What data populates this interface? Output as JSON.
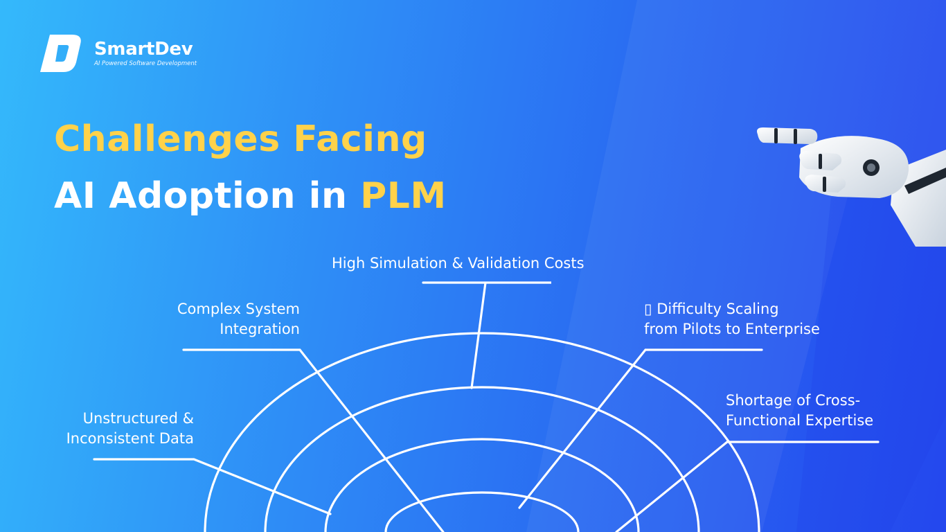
{
  "brand": {
    "name": "SmartDev",
    "tagline": "AI Powered Software Development",
    "logo_icon": "smartdev-logo-icon"
  },
  "title": {
    "line1": "Challenges Facing",
    "line2_prefix": "AI Adoption in ",
    "line2_highlight": "PLM"
  },
  "diagram": {
    "challenges": [
      {
        "lines": [
          "Unstructured &",
          "Inconsistent Data"
        ]
      },
      {
        "lines": [
          "Complex System",
          "Integration"
        ]
      },
      {
        "lines": [
          "High Simulation & Validation Costs"
        ]
      },
      {
        "lines": [
          "▯ Difficulty Scaling",
          "from Pilots to Enterprise"
        ]
      },
      {
        "lines": [
          "Shortage of Cross-",
          "Functional Expertise"
        ]
      }
    ]
  },
  "colors": {
    "accent_yellow": "#ffd24a",
    "text_white": "#ffffff",
    "bg_light": "#34b9fb",
    "bg_dark": "#2447ee"
  },
  "decor": {
    "robot": "robot-hand-icon"
  }
}
